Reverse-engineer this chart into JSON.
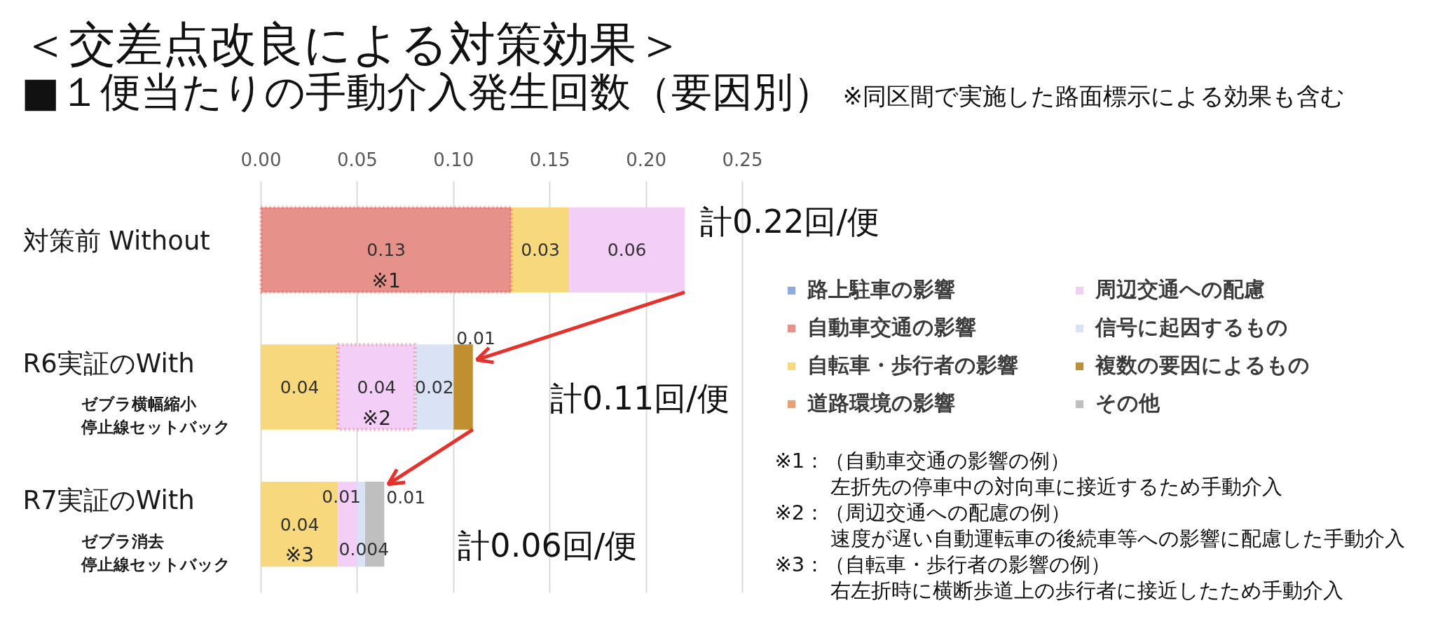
{
  "chart_data": {
    "type": "bar",
    "orientation": "horizontal",
    "stacked": true,
    "title": "＜交差点改良による対策効果＞",
    "subtitle": "■１便当たりの手動介入発生回数（要因別）",
    "categories": [
      "対策前 Without",
      "R6実証のWith",
      "R7実証のWith"
    ],
    "series": [
      {
        "name": "路上駐車の影響",
        "color": "#8faadc",
        "values": [
          null,
          null,
          null
        ]
      },
      {
        "name": "自動車交通の影響",
        "color": "#e6928a",
        "values": [
          0.13,
          null,
          null
        ]
      },
      {
        "name": "自転車・歩行者の影響",
        "color": "#f7d87c",
        "values": [
          0.03,
          0.04,
          0.04
        ]
      },
      {
        "name": "道路環境の影響",
        "color": "#e9a070",
        "values": [
          null,
          null,
          null
        ]
      },
      {
        "name": "周辺交通への配慮",
        "color": "#f3cef6",
        "values": [
          0.06,
          0.04,
          0.01
        ]
      },
      {
        "name": "信号に起因するもの",
        "color": "#dae3f5",
        "values": [
          null,
          0.02,
          0.004
        ]
      },
      {
        "name": "複数の要因によるもの",
        "color": "#c09030",
        "values": [
          null,
          0.01,
          null
        ]
      },
      {
        "name": "その他",
        "color": "#bfbfbf",
        "values": [
          null,
          null,
          0.01
        ]
      }
    ],
    "xlim": [
      0,
      0.25
    ],
    "xticks": [
      {
        "value": 0,
        "label": "0.00"
      },
      0.05,
      {
        "value": 0.1,
        "label": "0.10"
      },
      0.15,
      {
        "value": 0.2,
        "label": "0.20"
      },
      0.25
    ],
    "grid": "x",
    "legend": "right",
    "data_labels": true,
    "totals": [
      "計0.22回/便",
      "計0.11回/便",
      "計0.06回/便"
    ],
    "annotations": [
      "※同区間で実施した路面標示による効果も含む",
      "※1：（自動車交通の影響の例）",
      "左折先の停車中の対向車に接近するため手動介入",
      "※2：（周辺交通への配慮の例）",
      "速度が遅い自動運転車の後続車等への影響に配慮した手動介入",
      "※3：（自転車・歩行者の影響の例）",
      "右左折時に横断歩道上の歩行者に接近したため手動介入",
      "※1",
      "※2",
      "※3",
      "ゼブラ横幅縮小",
      "停止線セットバック",
      "ゼブラ消去",
      "停止線セットバック"
    ]
  }
}
